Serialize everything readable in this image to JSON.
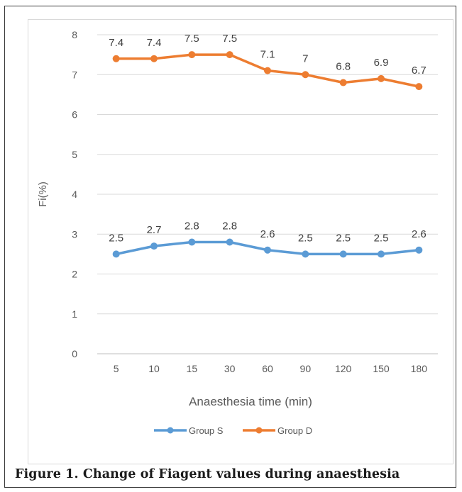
{
  "caption": "Figure 1. Change of Fiagent values during anaesthesia",
  "chart_data": {
    "type": "line",
    "categories": [
      "5",
      "10",
      "15",
      "30",
      "60",
      "90",
      "120",
      "150",
      "180"
    ],
    "series": [
      {
        "name": "Group S",
        "color": "#5b9bd5",
        "values": [
          2.5,
          2.7,
          2.8,
          2.8,
          2.6,
          2.5,
          2.5,
          2.5,
          2.6
        ]
      },
      {
        "name": "Group D",
        "color": "#ed7d31",
        "values": [
          7.4,
          7.4,
          7.5,
          7.5,
          7.1,
          7,
          6.8,
          6.9,
          6.7
        ]
      }
    ],
    "xlabel": "Anaesthesia time (min)",
    "ylabel": "Fi(%)",
    "ylim": [
      0,
      8
    ],
    "yticks": [
      "0",
      "1",
      "2",
      "3",
      "4",
      "5",
      "6",
      "7",
      "8"
    ],
    "grid": true,
    "legend": "bottom",
    "data_labels": true
  }
}
